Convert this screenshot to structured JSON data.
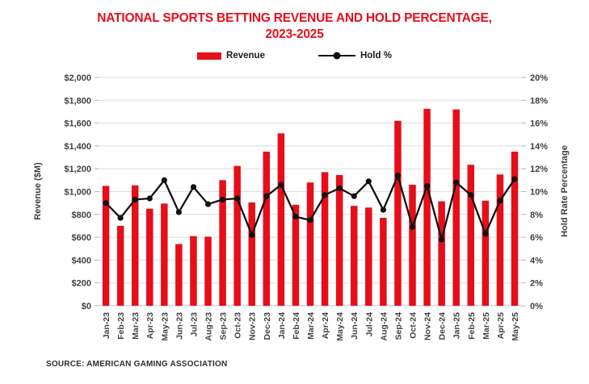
{
  "title": {
    "line1": "NATIONAL SPORTS BETTING REVENUE AND HOLD PERCENTAGE,",
    "line2": "2023-2025"
  },
  "legend": {
    "revenue_label": "Revenue",
    "hold_label": "Hold %"
  },
  "source": "SOURCE: AMERICAN GAMING ASSOCIATION",
  "colors": {
    "accent_red": "#e60e19",
    "line_black": "#111111",
    "grid_gray": "#dcdcdc",
    "axis_text_gray": "#404040"
  },
  "chart_data": {
    "type": "bar",
    "subtype": "bar+line combo, dual axis",
    "categories": [
      "Jan-23",
      "Feb-23",
      "Mar-23",
      "Apr-23",
      "May-23",
      "Jun-23",
      "Jul-23",
      "Aug-23",
      "Sep-23",
      "Oct-23",
      "Nov-23",
      "Dec-23",
      "Jan-24",
      "Feb-24",
      "Mar-24",
      "Apr-24",
      "May-24",
      "Jun-24",
      "Jul-24",
      "Aug-24",
      "Sep-24",
      "Oct-24",
      "Nov-24",
      "Dec-24",
      "Jan-25",
      "Feb-25",
      "Mar-25",
      "Apr-25",
      "May-25"
    ],
    "series": [
      {
        "name": "Revenue",
        "type": "bar",
        "axis": "left",
        "values": [
          1050,
          700,
          1055,
          850,
          895,
          540,
          610,
          605,
          1100,
          1225,
          905,
          1350,
          1510,
          885,
          1080,
          1170,
          1145,
          875,
          860,
          770,
          1620,
          1060,
          1725,
          915,
          1720,
          1235,
          920,
          1150,
          1350
        ]
      },
      {
        "name": "Hold %",
        "type": "line",
        "axis": "right",
        "values": [
          9.0,
          7.7,
          9.3,
          9.4,
          11.0,
          8.2,
          10.4,
          8.9,
          9.3,
          9.4,
          6.2,
          9.6,
          10.6,
          7.8,
          7.5,
          9.7,
          10.3,
          9.6,
          10.9,
          8.4,
          11.4,
          6.9,
          10.5,
          5.8,
          10.8,
          9.7,
          6.3,
          9.2,
          11.1
        ]
      }
    ],
    "left_axis": {
      "label": "Revenue ($M)",
      "min": 0,
      "max": 2000,
      "step": 200,
      "format": "dollar"
    },
    "right_axis": {
      "label": "Hold Rate Percentage",
      "min": 0,
      "max": 20,
      "step": 2,
      "format": "percent"
    },
    "grid": true,
    "legend_position": "top-center"
  }
}
